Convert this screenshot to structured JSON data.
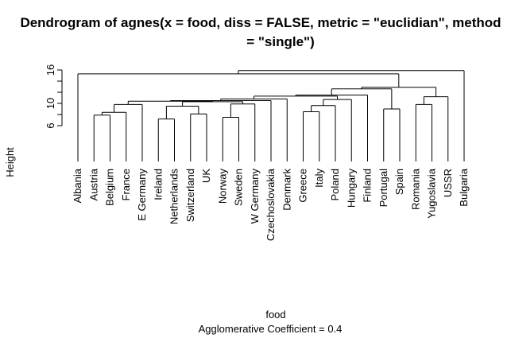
{
  "chart_data": {
    "type": "dendrogram",
    "title_line1": "Dendrogram of  agnes(x = food, diss = FALSE, metric = \"euclidian\", method",
    "title_line2": "= \"single\")",
    "ylabel": "Height",
    "xlabel": "food",
    "subtitle": "Agglomerative Coefficient =  0.4",
    "ylim": [
      3.5,
      16
    ],
    "y_ticks": [
      6,
      10,
      16
    ],
    "grid": false,
    "leaves": [
      "Albania",
      "Austria",
      "Belgium",
      "France",
      "E Germany",
      "Ireland",
      "Netherlands",
      "Switzerland",
      "UK",
      "Norway",
      "Sweden",
      "W Germany",
      "Czechoslovakia",
      "Denmark",
      "Greece",
      "Italy",
      "Poland",
      "Hungary",
      "Finland",
      "Portugal",
      "Spain",
      "Romania",
      "Yugoslavia",
      "USSR",
      "Bulgaria"
    ],
    "leaf_heights": [
      3.5,
      3.5,
      3.5,
      3.5,
      3.5,
      3.5,
      3.5,
      3.5,
      3.5,
      3.5,
      3.5,
      3.5,
      3.5,
      3.5,
      3.5,
      3.5,
      3.5,
      3.5,
      3.5,
      3.5,
      3.5,
      3.5,
      3.5,
      3.5,
      3.5
    ],
    "merges": [
      {
        "left": "Austria",
        "right": "Belgium",
        "height": 7.9
      },
      {
        "left": "Ireland",
        "right": "Netherlands",
        "height": 7.2
      },
      {
        "left": "Switzerland",
        "right": "UK",
        "height": 8.1
      },
      {
        "left": "Norway",
        "right": "Sweden",
        "height": 7.5
      },
      {
        "left": "Greece",
        "right": "Italy",
        "height": 8.5
      },
      {
        "left": "Portugal",
        "right": "Spain",
        "height": 9.0
      },
      {
        "left": "Romania",
        "right": "Yugoslavia",
        "height": 9.8
      },
      {
        "left": "m1",
        "right": "France",
        "height": 8.4
      },
      {
        "left": "m8",
        "right": "E Germany",
        "height": 9.8
      },
      {
        "left": "m2",
        "right": "m3",
        "height": 9.5
      },
      {
        "left": "m4",
        "right": "W Germany",
        "height": 9.9
      },
      {
        "left": "m10",
        "right": "m11",
        "height": 10.3
      },
      {
        "left": "m5",
        "right": "Poland",
        "height": 9.6
      },
      {
        "left": "m9",
        "right": "m12",
        "height": 10.4
      },
      {
        "left": "m14",
        "right": "Czechoslovakia",
        "height": 10.5
      },
      {
        "left": "m15",
        "right": "Denmark",
        "height": 10.8
      },
      {
        "left": "m13",
        "right": "Hungary",
        "height": 10.7
      },
      {
        "left": "m16",
        "right": "m17",
        "height": 11.3
      },
      {
        "left": "m18",
        "right": "Finland",
        "height": 11.5
      },
      {
        "left": "m19",
        "right": "m6",
        "height": 12.6
      },
      {
        "left": "m7",
        "right": "USSR",
        "height": 11.2
      },
      {
        "left": "m20",
        "right": "m21",
        "height": 12.9
      },
      {
        "left": "Albania",
        "right": "m22",
        "height": 15.3
      },
      {
        "left": "m23",
        "right": "Bulgaria",
        "height": 15.9
      }
    ]
  }
}
